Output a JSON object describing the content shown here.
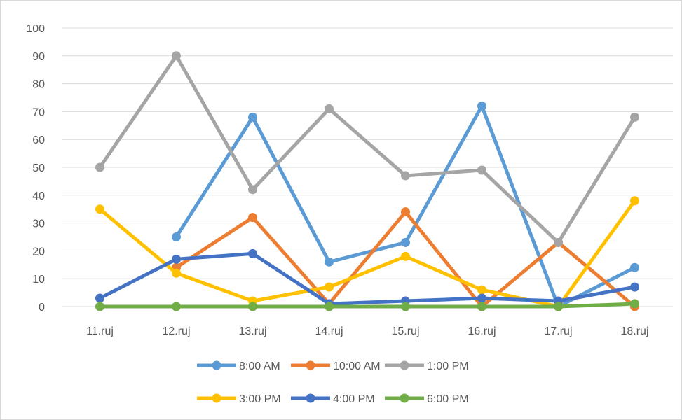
{
  "chart_data": {
    "type": "line",
    "categories": [
      "11.ruj",
      "12.ruj",
      "13.ruj",
      "14.ruj",
      "15.ruj",
      "16.ruj",
      "17.ruj",
      "18.ruj"
    ],
    "ylim": [
      0,
      100
    ],
    "yticks": [
      0,
      10,
      20,
      30,
      40,
      50,
      60,
      70,
      80,
      90,
      100
    ],
    "grid": true,
    "legend_position": "bottom",
    "series": [
      {
        "name": "8:00 AM",
        "color": "#5b9bd5",
        "values": [
          null,
          25,
          68,
          16,
          23,
          72,
          0,
          14
        ]
      },
      {
        "name": "10:00 AM",
        "color": "#ed7d31",
        "values": [
          null,
          14,
          32,
          1,
          34,
          0,
          23,
          0
        ]
      },
      {
        "name": "1:00 PM",
        "color": "#a5a5a5",
        "values": [
          50,
          90,
          42,
          71,
          47,
          49,
          23,
          68
        ]
      },
      {
        "name": "3:00 PM",
        "color": "#ffc000",
        "values": [
          35,
          12,
          2,
          7,
          18,
          6,
          0,
          38
        ]
      },
      {
        "name": "4:00 PM",
        "color": "#4472c4",
        "values": [
          3,
          17,
          19,
          1,
          2,
          3,
          2,
          7
        ]
      },
      {
        "name": "6:00 PM",
        "color": "#70ad47",
        "values": [
          0,
          0,
          0,
          0,
          0,
          0,
          0,
          1
        ]
      }
    ]
  }
}
